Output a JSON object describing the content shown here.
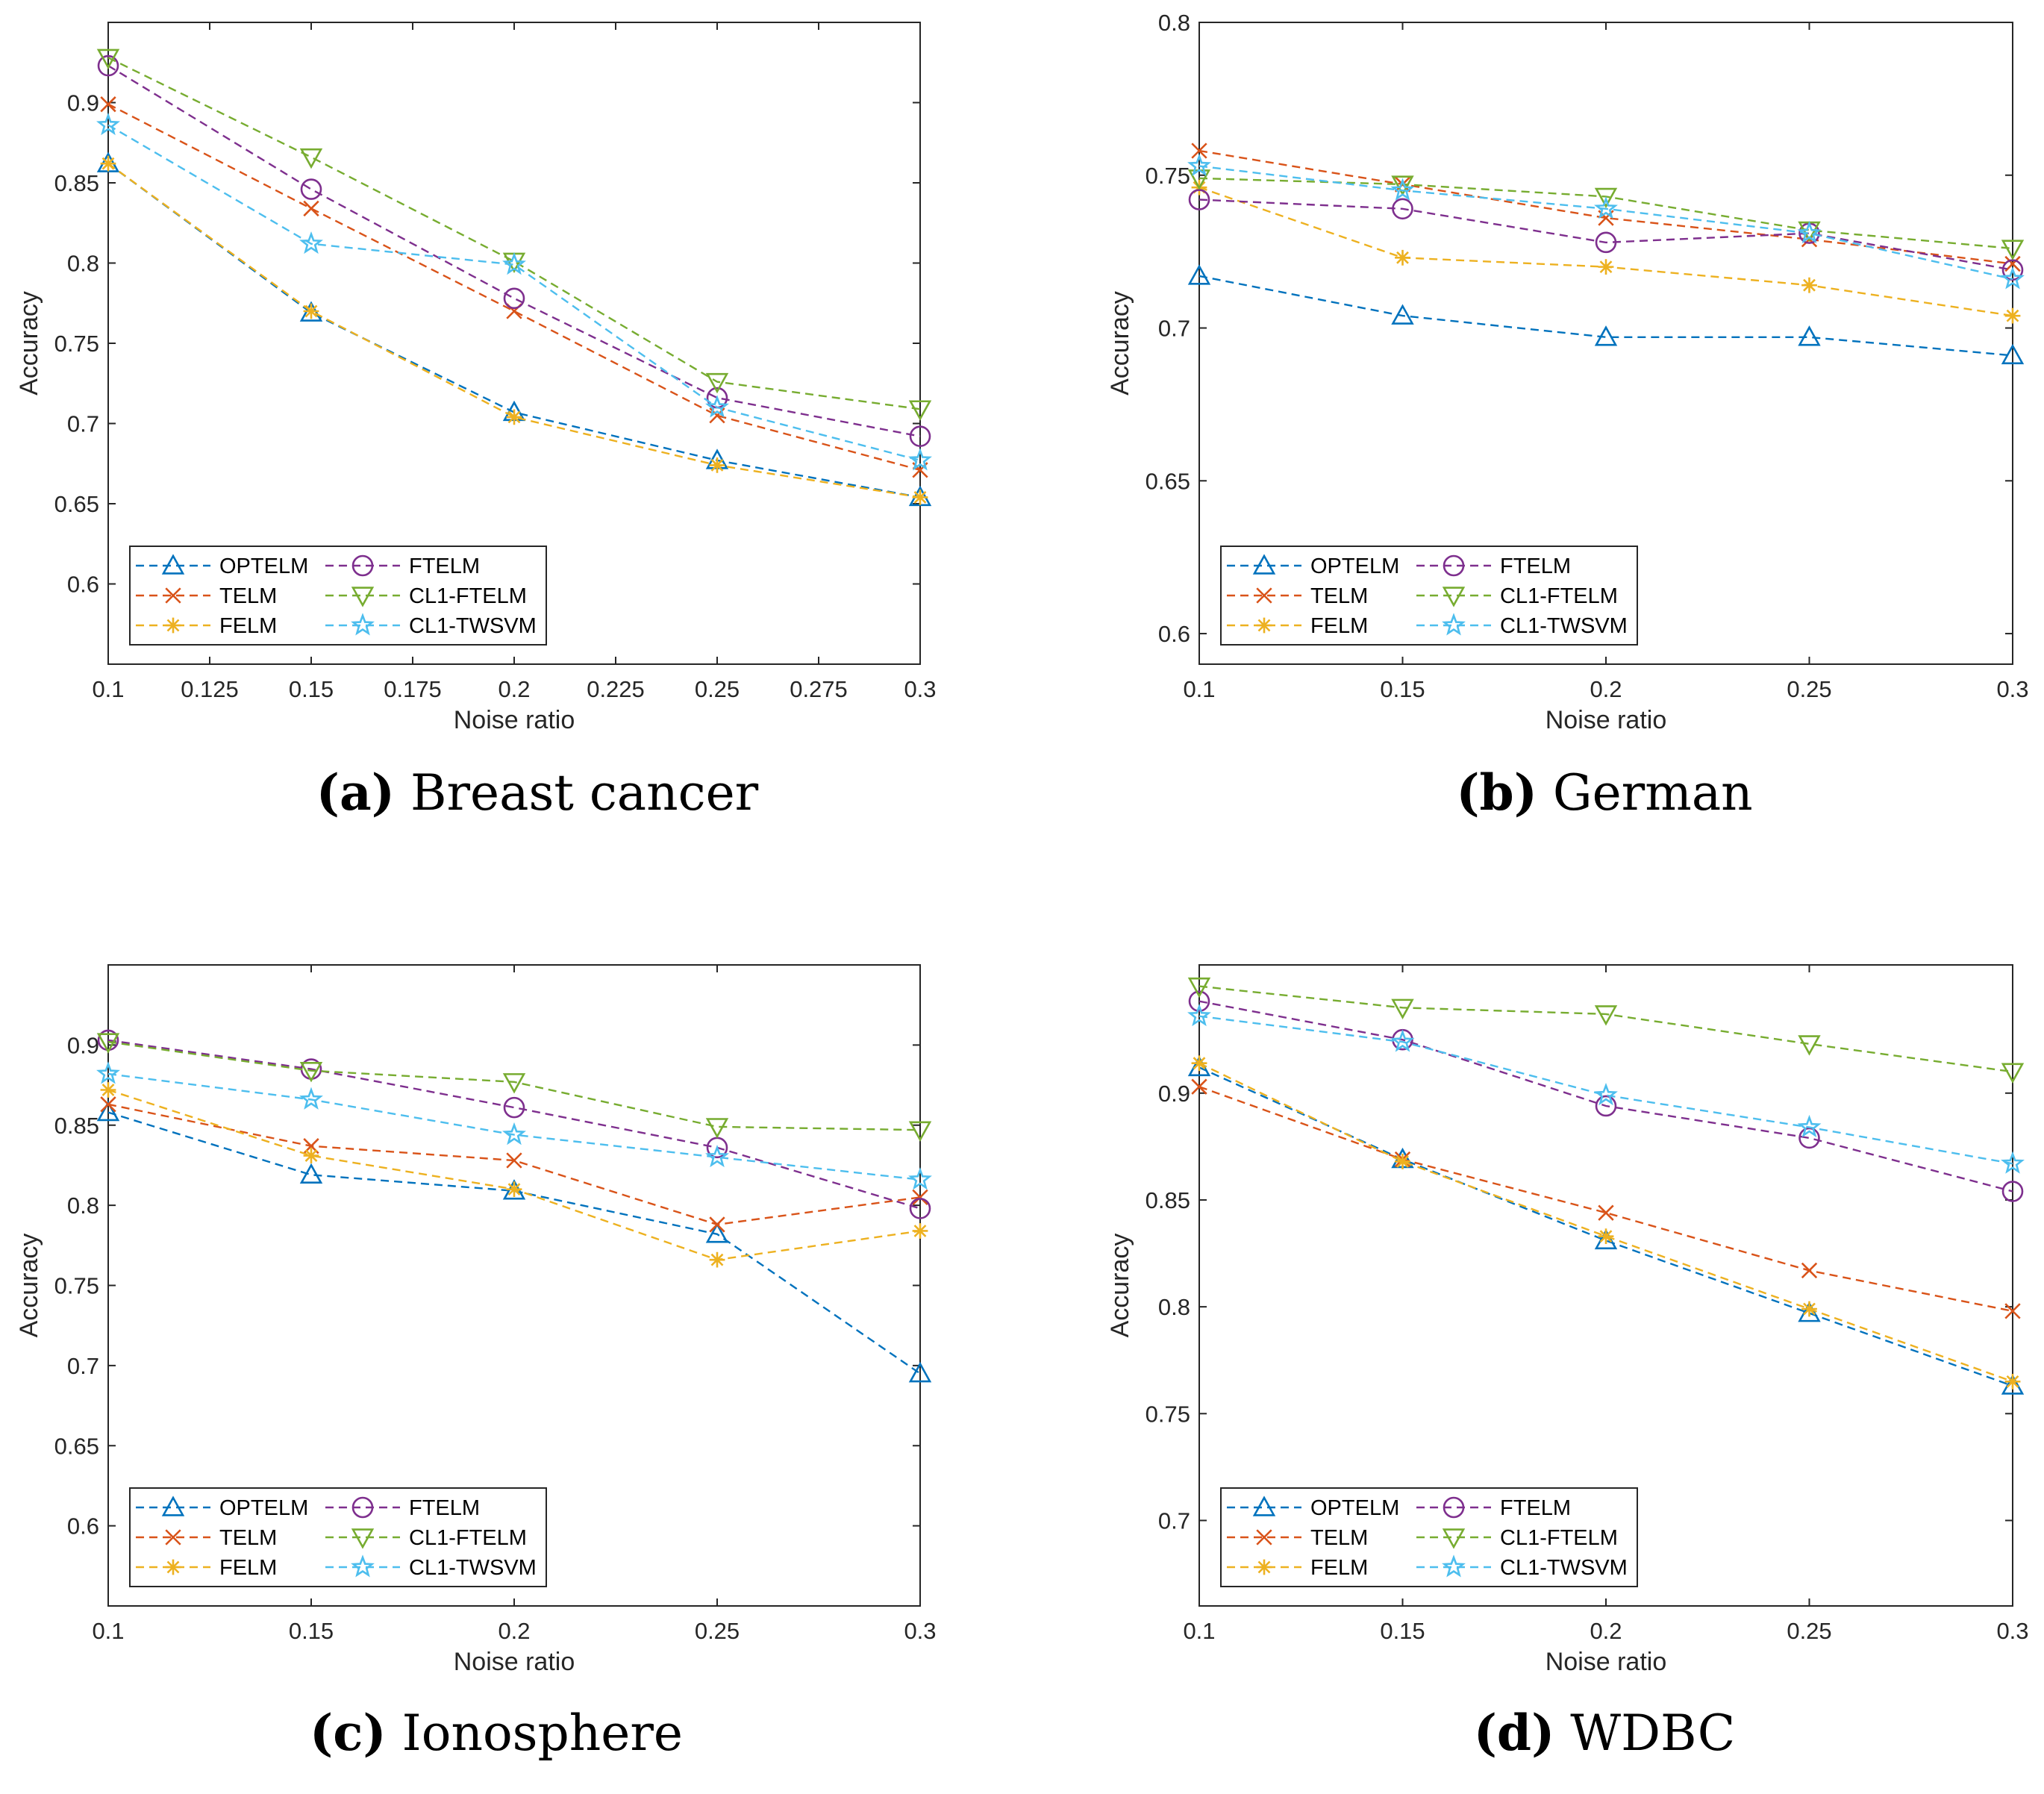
{
  "series_style": {
    "OPTELM": {
      "color": "#0072BD",
      "marker": "triangle-up"
    },
    "TELM": {
      "color": "#D95319",
      "marker": "x"
    },
    "FELM": {
      "color": "#EDB120",
      "marker": "asterisk"
    },
    "FTELM": {
      "color": "#7E2F8E",
      "marker": "circle"
    },
    "CL1-FTELM": {
      "color": "#77AC30",
      "marker": "triangle-down"
    },
    "CL1-TWSVM": {
      "color": "#4DBEEE",
      "marker": "pentagram"
    }
  },
  "chart_data": [
    {
      "type": "line",
      "caption_letter": "(a)",
      "caption_text": "Breast cancer",
      "xlabel": "Noise ratio",
      "ylabel": "Accuracy",
      "xlim": [
        0.1,
        0.3
      ],
      "ylim": [
        0.55,
        0.95
      ],
      "xticks": [
        "0.1",
        "0.125",
        "0.15",
        "0.175",
        "0.2",
        "0.225",
        "0.25",
        "0.275",
        "0.3"
      ],
      "yticks": [
        "0.6",
        "0.65",
        "0.7",
        "0.75",
        "0.8",
        "0.85",
        "0.9"
      ],
      "legend_position": "bottom-left",
      "x": [
        0.1,
        0.15,
        0.2,
        0.25,
        0.3
      ],
      "series": [
        {
          "name": "OPTELM",
          "values": [
            0.862,
            0.769,
            0.707,
            0.677,
            0.654
          ]
        },
        {
          "name": "TELM",
          "values": [
            0.899,
            0.834,
            0.77,
            0.705,
            0.671
          ]
        },
        {
          "name": "FELM",
          "values": [
            0.862,
            0.77,
            0.704,
            0.674,
            0.654
          ]
        },
        {
          "name": "FTELM",
          "values": [
            0.923,
            0.846,
            0.778,
            0.716,
            0.692
          ]
        },
        {
          "name": "CL1-FTELM",
          "values": [
            0.928,
            0.866,
            0.801,
            0.726,
            0.709
          ]
        },
        {
          "name": "CL1-TWSVM",
          "values": [
            0.886,
            0.812,
            0.799,
            0.71,
            0.677
          ]
        }
      ]
    },
    {
      "type": "line",
      "caption_letter": "(b)",
      "caption_text": "German",
      "xlabel": "Noise ratio",
      "ylabel": "Accuracy",
      "xlim": [
        0.1,
        0.3
      ],
      "ylim": [
        0.59,
        0.8
      ],
      "xticks": [
        "0.1",
        "0.15",
        "0.2",
        "0.25",
        "0.3"
      ],
      "yticks": [
        "0.6",
        "0.65",
        "0.7",
        "0.75",
        "0.8"
      ],
      "legend_position": "bottom-left",
      "x": [
        0.1,
        0.15,
        0.2,
        0.25,
        0.3
      ],
      "series": [
        {
          "name": "OPTELM",
          "values": [
            0.717,
            0.704,
            0.697,
            0.697,
            0.691
          ]
        },
        {
          "name": "TELM",
          "values": [
            0.758,
            0.747,
            0.736,
            0.729,
            0.721
          ]
        },
        {
          "name": "FELM",
          "values": [
            0.746,
            0.723,
            0.72,
            0.714,
            0.704
          ]
        },
        {
          "name": "FTELM",
          "values": [
            0.742,
            0.739,
            0.728,
            0.731,
            0.719
          ]
        },
        {
          "name": "CL1-FTELM",
          "values": [
            0.749,
            0.747,
            0.743,
            0.732,
            0.726
          ]
        },
        {
          "name": "CL1-TWSVM",
          "values": [
            0.753,
            0.745,
            0.739,
            0.731,
            0.716
          ]
        }
      ]
    },
    {
      "type": "line",
      "caption_letter": "(c)",
      "caption_text": "Ionosphere",
      "xlabel": "Noise ratio",
      "ylabel": "Accuracy",
      "xlim": [
        0.1,
        0.3
      ],
      "ylim": [
        0.55,
        0.95
      ],
      "xticks": [
        "0.1",
        "0.15",
        "0.2",
        "0.25",
        "0.3"
      ],
      "yticks": [
        "0.6",
        "0.65",
        "0.7",
        "0.75",
        "0.8",
        "0.85",
        "0.9"
      ],
      "legend_position": "bottom-left",
      "x": [
        0.1,
        0.15,
        0.2,
        0.25,
        0.3
      ],
      "series": [
        {
          "name": "OPTELM",
          "values": [
            0.858,
            0.819,
            0.809,
            0.782,
            0.695
          ]
        },
        {
          "name": "TELM",
          "values": [
            0.863,
            0.837,
            0.828,
            0.788,
            0.805
          ]
        },
        {
          "name": "FELM",
          "values": [
            0.872,
            0.831,
            0.81,
            0.766,
            0.784
          ]
        },
        {
          "name": "FTELM",
          "values": [
            0.903,
            0.885,
            0.861,
            0.836,
            0.798
          ]
        },
        {
          "name": "CL1-FTELM",
          "values": [
            0.902,
            0.884,
            0.877,
            0.849,
            0.847
          ]
        },
        {
          "name": "CL1-TWSVM",
          "values": [
            0.882,
            0.866,
            0.844,
            0.83,
            0.816
          ]
        }
      ]
    },
    {
      "type": "line",
      "caption_letter": "(d)",
      "caption_text": "WDBC",
      "xlabel": "Noise ratio",
      "ylabel": "Accuracy",
      "xlim": [
        0.1,
        0.3
      ],
      "ylim": [
        0.66,
        0.96
      ],
      "xticks": [
        "0.1",
        "0.15",
        "0.2",
        "0.25",
        "0.3"
      ],
      "yticks": [
        "0.7",
        "0.75",
        "0.8",
        "0.85",
        "0.9"
      ],
      "legend_position": "bottom-left",
      "x": [
        0.1,
        0.15,
        0.2,
        0.25,
        0.3
      ],
      "series": [
        {
          "name": "OPTELM",
          "values": [
            0.912,
            0.869,
            0.831,
            0.797,
            0.763
          ]
        },
        {
          "name": "TELM",
          "values": [
            0.903,
            0.869,
            0.844,
            0.817,
            0.798
          ]
        },
        {
          "name": "FELM",
          "values": [
            0.914,
            0.868,
            0.833,
            0.799,
            0.765
          ]
        },
        {
          "name": "FTELM",
          "values": [
            0.943,
            0.925,
            0.894,
            0.879,
            0.854
          ]
        },
        {
          "name": "CL1-FTELM",
          "values": [
            0.95,
            0.94,
            0.937,
            0.923,
            0.91
          ]
        },
        {
          "name": "CL1-TWSVM",
          "values": [
            0.936,
            0.924,
            0.899,
            0.884,
            0.867
          ]
        }
      ]
    }
  ]
}
